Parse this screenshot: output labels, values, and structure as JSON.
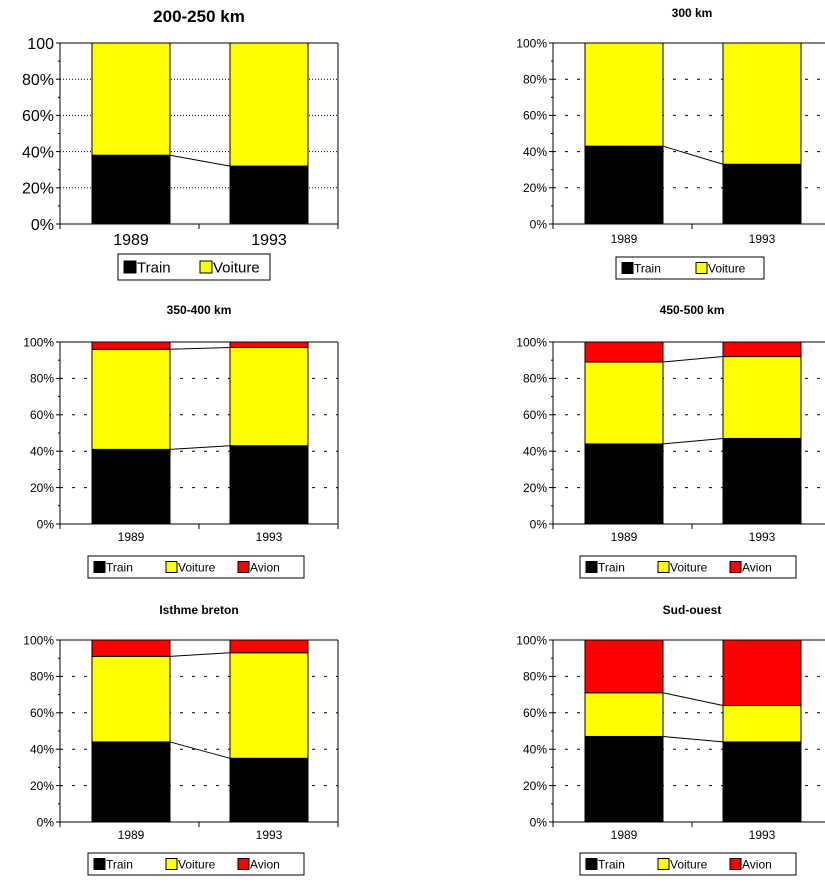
{
  "colors": {
    "train": "#000000",
    "voiture": "#ffff00",
    "avion": "#ff0000"
  },
  "chart_data": [
    {
      "type": "bar",
      "stacked": true,
      "percent": true,
      "title": "200-250 km",
      "categories": [
        "1989",
        "1993"
      ],
      "yticks": [
        "0%",
        "20%",
        "40%",
        "60%",
        "80%",
        "100"
      ],
      "ylim": [
        0,
        100
      ],
      "grid": "dotted",
      "legend_position": "bottom",
      "series": [
        {
          "name": "Train",
          "values": [
            38,
            32
          ]
        },
        {
          "name": "Voiture",
          "values": [
            62,
            68
          ]
        }
      ]
    },
    {
      "type": "bar",
      "stacked": true,
      "percent": true,
      "title": "300 km",
      "categories": [
        "1989",
        "1993"
      ],
      "yticks": [
        "0%",
        "20%",
        "40%",
        "60%",
        "80%",
        "100%"
      ],
      "ylim": [
        0,
        100
      ],
      "grid": "dashed",
      "legend_position": "bottom",
      "series": [
        {
          "name": "Train",
          "values": [
            43,
            33
          ]
        },
        {
          "name": "Voiture",
          "values": [
            57,
            67
          ]
        }
      ]
    },
    {
      "type": "bar",
      "stacked": true,
      "percent": true,
      "title": "350-400 km",
      "categories": [
        "1989",
        "1993"
      ],
      "yticks": [
        "0%",
        "20%",
        "40%",
        "60%",
        "80%",
        "100%"
      ],
      "ylim": [
        0,
        100
      ],
      "grid": "dashed",
      "legend_position": "bottom",
      "series": [
        {
          "name": "Train",
          "values": [
            41,
            43
          ]
        },
        {
          "name": "Voiture",
          "values": [
            55,
            54
          ]
        },
        {
          "name": "Avion",
          "values": [
            4,
            3
          ]
        }
      ]
    },
    {
      "type": "bar",
      "stacked": true,
      "percent": true,
      "title": "450-500 km",
      "categories": [
        "1989",
        "1993"
      ],
      "yticks": [
        "0%",
        "20%",
        "40%",
        "60%",
        "80%",
        "100%"
      ],
      "ylim": [
        0,
        100
      ],
      "grid": "dashed",
      "legend_position": "bottom",
      "series": [
        {
          "name": "Train",
          "values": [
            44,
            47
          ]
        },
        {
          "name": "Voiture",
          "values": [
            45,
            45
          ]
        },
        {
          "name": "Avion",
          "values": [
            11,
            8
          ]
        }
      ]
    },
    {
      "type": "bar",
      "stacked": true,
      "percent": true,
      "title": "Isthme breton",
      "categories": [
        "1989",
        "1993"
      ],
      "yticks": [
        "0%",
        "20%",
        "40%",
        "60%",
        "80%",
        "100%"
      ],
      "ylim": [
        0,
        100
      ],
      "grid": "dashed",
      "legend_position": "bottom",
      "series": [
        {
          "name": "Train",
          "values": [
            44,
            35
          ]
        },
        {
          "name": "Voiture",
          "values": [
            47,
            58
          ]
        },
        {
          "name": "Avion",
          "values": [
            9,
            7
          ]
        }
      ]
    },
    {
      "type": "bar",
      "stacked": true,
      "percent": true,
      "title": "Sud-ouest",
      "categories": [
        "1989",
        "1993"
      ],
      "yticks": [
        "0%",
        "20%",
        "40%",
        "60%",
        "80%",
        "100%"
      ],
      "ylim": [
        0,
        100
      ],
      "grid": "dashed",
      "legend_position": "bottom",
      "series": [
        {
          "name": "Train",
          "values": [
            47,
            44
          ]
        },
        {
          "name": "Voiture",
          "values": [
            24,
            20
          ]
        },
        {
          "name": "Avion",
          "values": [
            29,
            36
          ]
        }
      ]
    }
  ]
}
